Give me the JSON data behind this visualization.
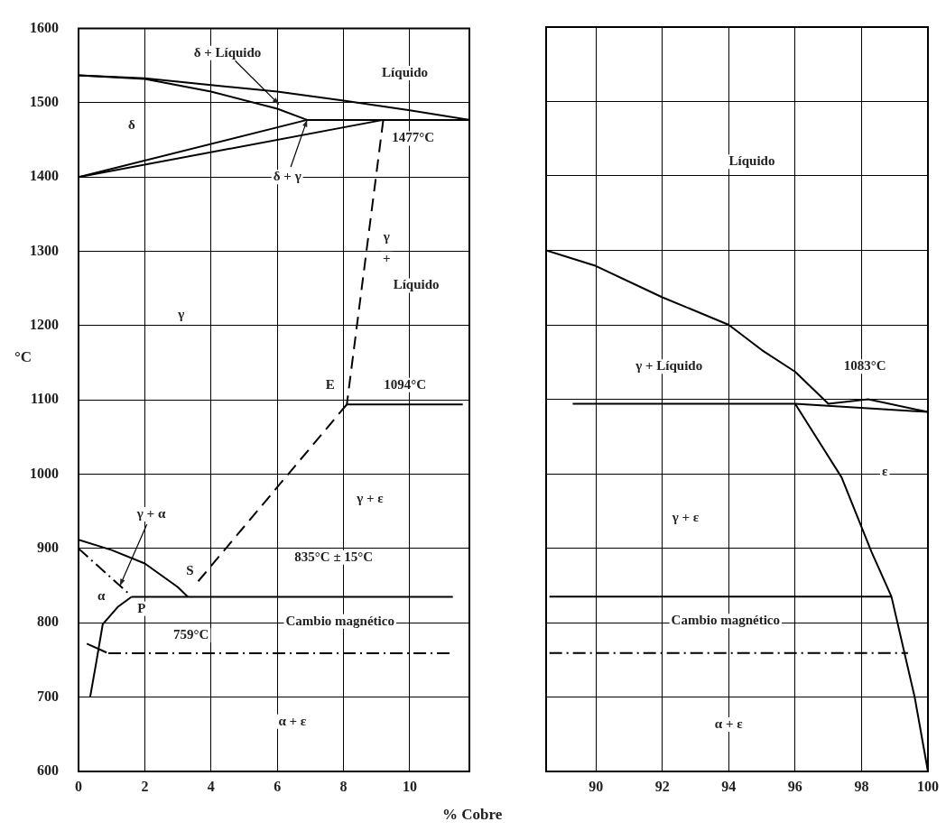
{
  "chart_data": [
    {
      "type": "line",
      "xlabel": "% Cobre",
      "ylabel": "°C",
      "xlim": [
        0,
        11.8
      ],
      "xticks": [
        0,
        2,
        4,
        6,
        8,
        10
      ],
      "ylim": [
        600,
        1600
      ],
      "yticks": [
        600,
        700,
        800,
        900,
        1000,
        1100,
        1200,
        1300,
        1400,
        1500,
        1600
      ],
      "grid": true,
      "marker": "none",
      "series": [
        {
          "color": "#000000",
          "line_style": "solid",
          "x": [
            0,
            2,
            4,
            6,
            8,
            10,
            11.8
          ],
          "values": [
            1537,
            1533,
            1524,
            1515,
            1503,
            1490,
            1477
          ]
        },
        {
          "color": "#000000",
          "line_style": "solid",
          "x": [
            0,
            2,
            4,
            6,
            6.9,
            11.8
          ],
          "values": [
            1537,
            1532,
            1515,
            1492,
            1477,
            1477
          ]
        },
        {
          "color": "#000000",
          "line_style": "solid",
          "x": [
            0,
            6.9
          ],
          "values": [
            1400,
            1477
          ]
        },
        {
          "color": "#000000",
          "line_style": "solid",
          "x": [
            0,
            9.2
          ],
          "values": [
            1400,
            1477
          ]
        },
        {
          "color": "#000000",
          "line_style": "dashed",
          "x": [
            9.2,
            8.1
          ],
          "values": [
            1477,
            1094
          ]
        },
        {
          "color": "#000000",
          "line_style": "solid",
          "x": [
            8.1,
            11.6
          ],
          "values": [
            1094,
            1094
          ]
        },
        {
          "color": "#000000",
          "line_style": "dashed",
          "x": [
            8.1,
            3.5
          ],
          "values": [
            1094,
            850
          ]
        },
        {
          "color": "#000000",
          "line_style": "solid",
          "x": [
            0,
            1,
            2,
            3,
            3.3
          ],
          "values": [
            912,
            898,
            880,
            848,
            835
          ]
        },
        {
          "color": "#000000",
          "line_style": "solid",
          "x": [
            1.6,
            11.3
          ],
          "values": [
            835,
            835
          ]
        },
        {
          "color": "#000000",
          "line_style": "dashdot",
          "x": [
            0,
            1.5
          ],
          "values": [
            900,
            840
          ]
        },
        {
          "color": "#000000",
          "line_style": "solid",
          "x": [
            0.35,
            0.54,
            0.73,
            1.2,
            1.6
          ],
          "values": [
            700,
            748,
            798,
            822,
            835
          ]
        },
        {
          "color": "#000000",
          "line_style": "solid",
          "x": [
            0.25,
            0.85
          ],
          "values": [
            772,
            760
          ]
        },
        {
          "color": "#000000",
          "line_style": "dashdot",
          "x": [
            0.9,
            11.3
          ],
          "values": [
            759,
            759
          ]
        }
      ],
      "annotations": [
        {
          "text": "δ + Líquido",
          "x": 6.05,
          "y": 1498
        },
        "Líquido",
        "δ",
        "1477°C",
        {
          "text": "δ + γ",
          "x": 6.9,
          "y": 1477
        },
        "γ",
        "γ",
        "+",
        "Líquido",
        "E",
        "1094°C",
        "γ + ε",
        {
          "text": "γ + α",
          "x": 1.25,
          "y": 850
        },
        "835°C ± 15°C",
        "S",
        "α",
        "P",
        "Cambio magnético",
        "759°C",
        "α + ε"
      ]
    },
    {
      "type": "line",
      "xlim": [
        88.5,
        100
      ],
      "xticks": [
        90,
        92,
        94,
        96,
        98,
        100
      ],
      "ylim": [
        600,
        1600
      ],
      "yticks": [
        600,
        700,
        800,
        900,
        1000,
        1100,
        1200,
        1300,
        1400,
        1500,
        1600
      ],
      "grid": true,
      "marker": "none",
      "tick_labels": "x",
      "series": [
        {
          "color": "#000000",
          "line_style": "solid",
          "x": [
            88.5,
            90,
            92,
            94,
            95,
            96,
            97,
            98.2,
            100
          ],
          "values": [
            1300,
            1279,
            1237,
            1200,
            1166,
            1137,
            1094,
            1100,
            1083
          ]
        },
        {
          "color": "#000000",
          "line_style": "solid",
          "x": [
            89.3,
            96,
            100
          ],
          "values": [
            1094,
            1094,
            1083
          ]
        },
        {
          "color": "#000000",
          "line_style": "solid",
          "x": [
            96,
            97.4,
            98.3,
            98.9,
            99.6,
            100
          ],
          "values": [
            1094,
            995,
            895,
            835,
            700,
            600
          ]
        },
        {
          "color": "#000000",
          "line_style": "solid",
          "x": [
            88.6,
            98.9
          ],
          "values": [
            835,
            835
          ]
        },
        {
          "color": "#000000",
          "line_style": "dashdot",
          "x": [
            88.6,
            99.4
          ],
          "values": [
            759,
            759
          ]
        }
      ],
      "annotations": [
        "Líquido",
        "γ + Líquido",
        "1083°C",
        "ε",
        "γ + ε",
        "Cambio magnético",
        "α + ε"
      ]
    }
  ]
}
